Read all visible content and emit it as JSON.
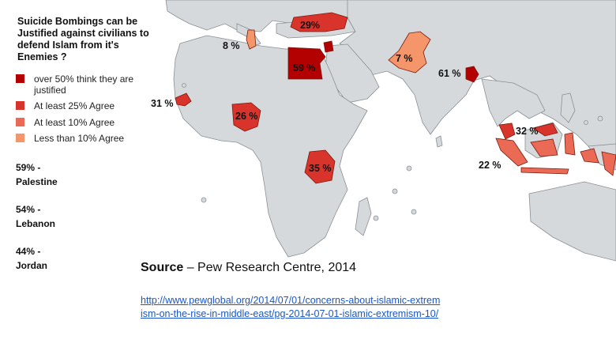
{
  "legend": {
    "title": "Suicide Bombings can be Justified against civilians to defend Islam from it's Enemies ?",
    "items": [
      {
        "label": "over 50% think they are justified",
        "color": "#b30000"
      },
      {
        "label": "At least 25% Agree",
        "color": "#d9342b"
      },
      {
        "label": "At least 10% Agree",
        "color": "#ea6a55"
      },
      {
        "label": "Less than 10% Agree",
        "color": "#f4956a"
      }
    ]
  },
  "stats": [
    {
      "value": "59% -",
      "place": "Palestine"
    },
    {
      "value": "54% -",
      "place": "Lebanon"
    },
    {
      "value": "44% -",
      "place": "Jordan"
    }
  ],
  "source": {
    "label": "Source",
    "text": " – Pew Research Centre, 2014"
  },
  "link": "http://www.pewglobal.org/2014/07/01/concerns-about-islamic-extremism-on-the-rise-in-middle-east/pg-2014-07-01-islamic-extremism-10/",
  "map_colors": {
    "land": "#d6d9dc",
    "border": "#8a8f94",
    "sea": "#ffffff"
  },
  "countries": [
    {
      "name": "Turkey",
      "value": "29%",
      "category": 1
    },
    {
      "name": "Tunisia",
      "value": "8 %",
      "category": 3
    },
    {
      "name": "Egypt",
      "value": "59 %",
      "category": 0
    },
    {
      "name": "Pakistan",
      "value": "7 %",
      "category": 3
    },
    {
      "name": "Bangladesh",
      "value": "61 %",
      "category": 0
    },
    {
      "name": "Senegal",
      "value": "31 %",
      "category": 1
    },
    {
      "name": "Nigeria",
      "value": "26 %",
      "category": 1
    },
    {
      "name": "Tanzania",
      "value": "35 %",
      "category": 1
    },
    {
      "name": "Malaysia",
      "value": "32 %",
      "category": 1
    },
    {
      "name": "Indonesia",
      "value": "22 %",
      "category": 2
    }
  ]
}
